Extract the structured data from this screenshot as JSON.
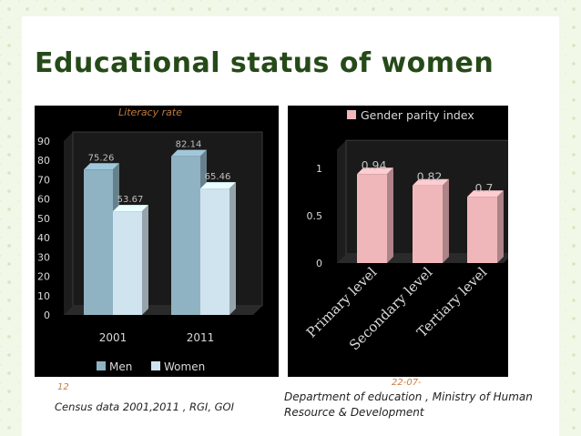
{
  "slide": {
    "title": "Educational status of women",
    "page_number": "12",
    "date": "22-07-",
    "source_left": "Census data 2001,2011 , RGI, GOI",
    "source_right": "Department of education , Ministry of Human Resource & Development"
  },
  "colors": {
    "men_bar": "#8fb3c3",
    "women_bar": "#cfe4ee",
    "gpi_bar": "#f0b7bb",
    "title": "#254a18",
    "chart_bg": "#000000",
    "chart_text": "#d9d9d9"
  },
  "chart_data": [
    {
      "type": "bar",
      "title": "Literacy rate",
      "categories": [
        "2001",
        "2011"
      ],
      "series": [
        {
          "name": "Men",
          "values": [
            75.26,
            82.14
          ]
        },
        {
          "name": "Women",
          "values": [
            53.67,
            65.46
          ]
        }
      ],
      "data_labels": [
        [
          "75.26",
          "82.14"
        ],
        [
          "53.67",
          "65.46"
        ]
      ],
      "ylim": [
        0,
        90
      ],
      "yticks": [
        "0",
        "10",
        "20",
        "30",
        "40",
        "50",
        "60",
        "70",
        "80",
        "90"
      ],
      "grid": false,
      "legend": "bottom"
    },
    {
      "type": "bar",
      "categories": [
        "Primary level",
        "Secondary level",
        "Tertiary level"
      ],
      "series": [
        {
          "name": "Gender parity index",
          "values": [
            0.94,
            0.82,
            0.7
          ]
        }
      ],
      "data_labels": [
        "0.94",
        "0.82",
        "0.7"
      ],
      "ylim": [
        0,
        1.2
      ],
      "yticks": [
        "0",
        "0.5",
        "1"
      ],
      "grid": false,
      "legend": "top"
    }
  ]
}
